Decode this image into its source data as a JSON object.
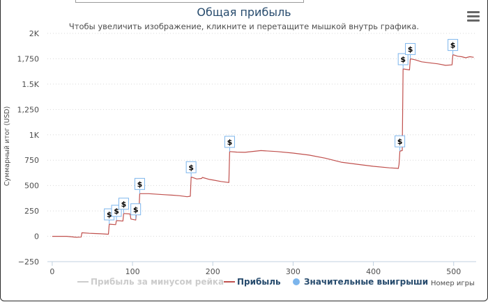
{
  "title": "Общая прибыль",
  "subtitle": "Чтобы увеличить изображение, кликните и перетащите мышкой внутрь графика.",
  "menu_icon": "hamburger-menu-icon",
  "colors": {
    "profit": "#c0504d",
    "big_win_marker": "#7cb5ec",
    "profit_minus_rake": "#cccccc",
    "title": "#274b6d"
  },
  "legend": {
    "minus_rake": "Прибыль за минусом рейка",
    "profit": "Прибыль",
    "big_wins": "Значительные выигрыши"
  },
  "chart_data": {
    "type": "line",
    "title": "Общая прибыль",
    "xlabel": "Номер игры",
    "ylabel": "Суммарный итог (USD)",
    "xlim": [
      -6,
      528
    ],
    "ylim": [
      -250,
      2000
    ],
    "x_ticks": [
      0,
      100,
      200,
      300,
      400,
      500
    ],
    "x_tick_labels": [
      "0",
      "100",
      "200",
      "300",
      "400",
      "500"
    ],
    "y_ticks": [
      -250,
      0,
      250,
      500,
      750,
      1000,
      1250,
      1500,
      1750,
      2000
    ],
    "y_tick_labels": [
      "−250",
      "0",
      "250",
      "500",
      "750",
      "1K",
      "1,250",
      "1.5K",
      "1,750",
      "2K"
    ],
    "grid": "horizontal-dotted",
    "legend_position": "bottom",
    "series": [
      {
        "name": "Прибыль",
        "x": [
          0,
          18,
          30,
          36,
          37,
          46,
          52,
          60,
          70,
          71,
          79,
          80,
          88,
          89,
          97,
          98,
          104,
          105,
          108,
          109,
          120,
          140,
          150,
          158,
          168,
          172,
          173,
          180,
          186,
          187,
          196,
          200,
          210,
          220,
          221,
          230,
          240,
          260,
          280,
          300,
          320,
          340,
          360,
          380,
          400,
          420,
          430,
          431,
          432,
          433,
          436,
          437,
          445,
          446,
          452,
          460,
          470,
          480,
          490,
          498,
          499,
          505,
          510,
          515,
          520,
          525
        ],
        "y": [
          0,
          0,
          -10,
          -8,
          35,
          30,
          28,
          25,
          20,
          120,
          115,
          155,
          150,
          225,
          220,
          170,
          160,
          240,
          240,
          420,
          420,
          410,
          405,
          400,
          390,
          395,
          585,
          565,
          570,
          580,
          560,
          555,
          540,
          530,
          835,
          830,
          828,
          845,
          835,
          820,
          800,
          770,
          730,
          710,
          690,
          675,
          670,
          668,
          710,
          840,
          845,
          1650,
          1640,
          1750,
          1740,
          1720,
          1710,
          1700,
          1685,
          1690,
          1790,
          1775,
          1770,
          1760,
          1770,
          1765
        ]
      },
      {
        "name": "Значительные выигрыши",
        "type": "scatter",
        "marker_label": "$",
        "x": [
          71,
          80,
          89,
          104,
          109,
          173,
          221,
          433,
          437,
          446,
          499
        ],
        "y": [
          120,
          155,
          225,
          170,
          420,
          585,
          835,
          840,
          1650,
          1750,
          1790
        ]
      }
    ]
  }
}
